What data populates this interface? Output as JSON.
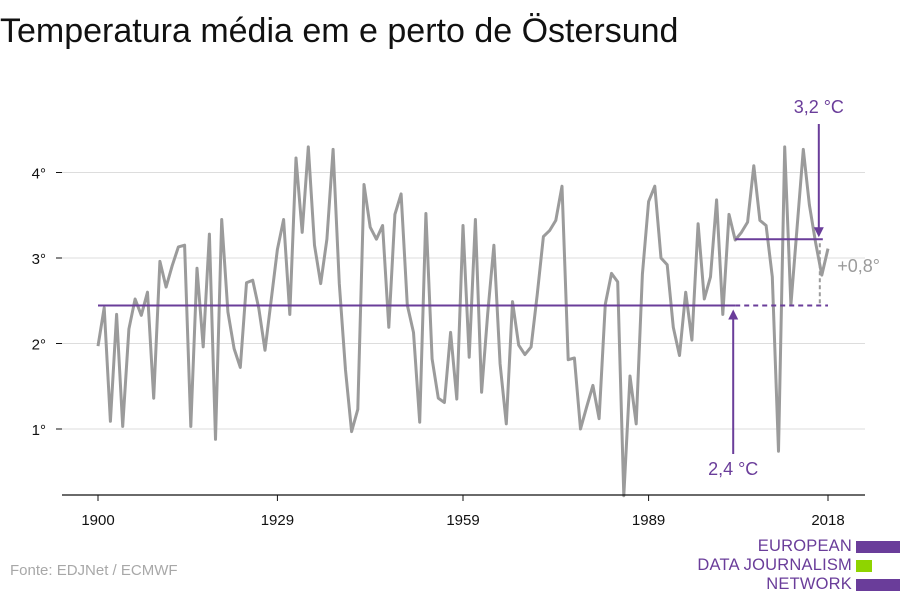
{
  "title": "Temperatura média em e perto de Östersund",
  "source": "Fonte: EDJNet / ECMWF",
  "logo": {
    "lines": [
      "EUROPEAN",
      "DATA JOURNALISM",
      "NETWORK"
    ],
    "colors": [
      "#6a3d9a",
      "#8fd400",
      "#6a3d9a"
    ]
  },
  "colors": {
    "series": "#9b9b9b",
    "average": "#6a3d9a",
    "grid": "#dddddd",
    "axis": "#111111",
    "delta_label": "#9b9b9b"
  },
  "chart_data": {
    "type": "line",
    "title": "Temperatura média em e perto de Östersund",
    "x_ticks": [
      1900,
      1929,
      1959,
      1989,
      2018
    ],
    "y_ticks": [
      1,
      2,
      3,
      4
    ],
    "y_tick_suffix": "°",
    "xlim": [
      1900,
      2018
    ],
    "ylim": [
      0.2,
      5.3
    ],
    "grid": "horizontal",
    "x": [
      1900,
      1901,
      1902,
      1903,
      1904,
      1905,
      1906,
      1907,
      1908,
      1909,
      1910,
      1911,
      1912,
      1913,
      1914,
      1915,
      1916,
      1917,
      1918,
      1919,
      1920,
      1921,
      1922,
      1923,
      1924,
      1925,
      1926,
      1927,
      1928,
      1929,
      1930,
      1931,
      1932,
      1933,
      1934,
      1935,
      1936,
      1937,
      1938,
      1939,
      1940,
      1941,
      1942,
      1943,
      1944,
      1945,
      1946,
      1947,
      1948,
      1949,
      1950,
      1951,
      1952,
      1953,
      1954,
      1955,
      1956,
      1957,
      1958,
      1959,
      1960,
      1961,
      1962,
      1963,
      1964,
      1965,
      1966,
      1967,
      1968,
      1969,
      1970,
      1971,
      1972,
      1973,
      1974,
      1975,
      1976,
      1977,
      1978,
      1979,
      1980,
      1981,
      1982,
      1983,
      1984,
      1985,
      1986,
      1987,
      1988,
      1989,
      1990,
      1991,
      1992,
      1993,
      1994,
      1995,
      1996,
      1997,
      1998,
      1999,
      2000,
      2001,
      2002,
      2003,
      2004,
      2005,
      2006,
      2007,
      2008,
      2009,
      2010,
      2011,
      2012,
      2013,
      2014,
      2015,
      2016,
      2017,
      2018
    ],
    "series": [
      {
        "values": [
          1.97,
          2.42,
          1.09,
          2.34,
          1.03,
          2.17,
          2.52,
          2.33,
          2.6,
          1.36,
          2.96,
          2.66,
          2.91,
          3.13,
          3.15,
          1.03,
          2.88,
          1.96,
          3.28,
          0.88,
          3.45,
          2.37,
          1.94,
          1.72,
          2.71,
          2.74,
          2.41,
          1.92,
          2.51,
          3.1,
          3.45,
          2.34,
          4.17,
          3.3,
          4.3,
          3.15,
          2.7,
          3.22,
          4.27,
          2.7,
          1.69,
          0.97,
          1.23,
          3.86,
          3.36,
          3.22,
          3.38,
          2.19,
          3.51,
          3.75,
          2.45,
          2.13,
          1.08,
          3.52,
          1.82,
          1.36,
          1.31,
          2.13,
          1.35,
          3.38,
          1.84,
          3.45,
          1.43,
          2.35,
          3.15,
          1.76,
          1.06,
          2.49,
          1.98,
          1.87,
          1.96,
          2.57,
          3.25,
          3.32,
          3.44,
          3.84,
          1.81,
          1.83,
          1.0,
          1.26,
          1.51,
          1.12,
          2.46,
          2.82,
          2.72,
          0.22,
          1.62,
          1.06,
          2.81,
          3.66,
          3.84,
          3.0,
          2.92,
          2.19,
          1.86,
          2.6,
          2.04,
          3.4,
          2.52,
          2.78,
          3.68,
          2.34,
          3.51,
          3.21,
          3.3,
          3.42,
          4.08,
          3.44,
          3.38,
          2.78,
          0.74,
          4.3,
          2.45,
          3.36,
          4.27,
          3.62,
          3.18,
          2.8,
          3.11
        ]
      }
    ],
    "average_1900_1980": 2.4,
    "average_recent": 3.2,
    "average_recent_from": 2003,
    "annotations": {
      "recent_label": "3,2 °C",
      "baseline_label": "2,4 °C",
      "delta_label": "+0,8°"
    }
  }
}
